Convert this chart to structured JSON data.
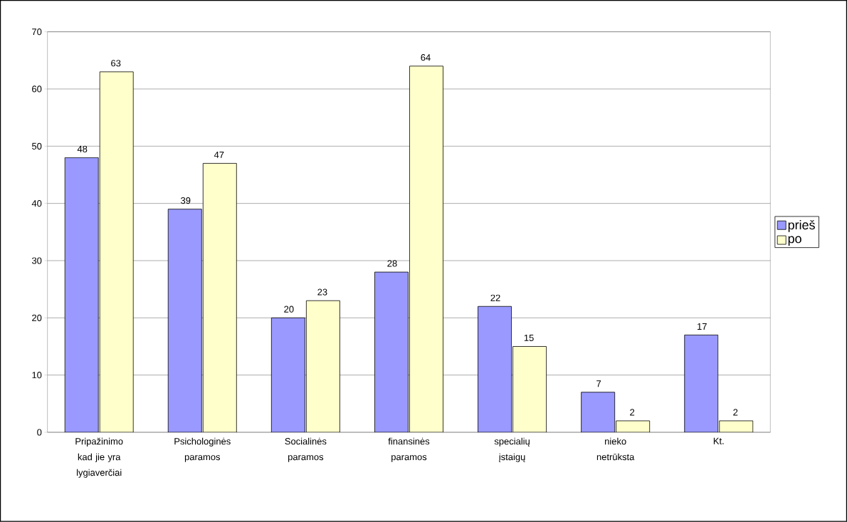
{
  "chart_data": {
    "type": "bar",
    "categories": [
      "Pripažinimo kad jie yra lygiaverčiai",
      "Psichologinės paramos",
      "Socialinės paramos",
      "finansinės paramos",
      "specialių įstaigų",
      "nieko netrūksta",
      "Kt."
    ],
    "series": [
      {
        "name": "prieš",
        "color": "#9999ff",
        "values": [
          48,
          39,
          20,
          28,
          22,
          7,
          17
        ]
      },
      {
        "name": "po",
        "color": "#ffffcc",
        "values": [
          63,
          47,
          23,
          64,
          15,
          2,
          2
        ]
      }
    ],
    "ylim": [
      0,
      70
    ],
    "yticks": [
      0,
      10,
      20,
      30,
      40,
      50,
      60,
      70
    ],
    "grid": "y",
    "legend": "right",
    "data_labels": true
  }
}
